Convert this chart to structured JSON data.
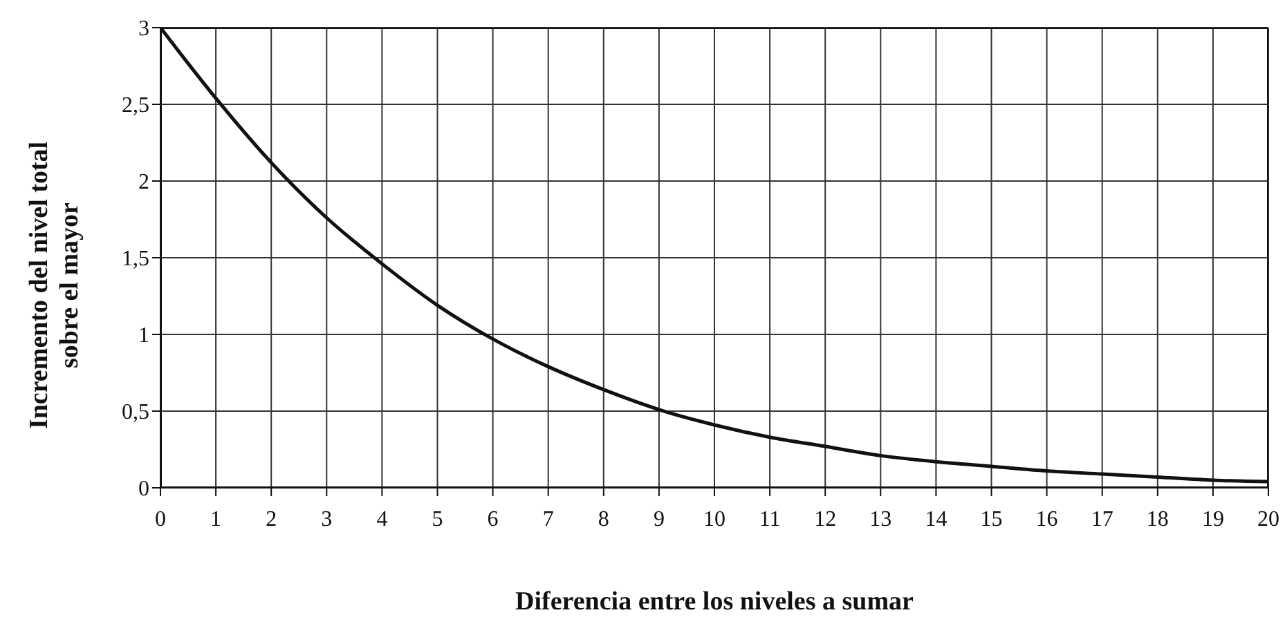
{
  "chart_data": {
    "type": "line",
    "xlabel": "Diferencia entre los niveles a sumar",
    "ylabel": "Incremento del nivel total sobre el mayor",
    "x": [
      0,
      1,
      2,
      3,
      4,
      5,
      6,
      7,
      8,
      9,
      10,
      11,
      12,
      13,
      14,
      15,
      16,
      17,
      18,
      19,
      20
    ],
    "series": [
      {
        "color": "#111111",
        "values": [
          3,
          2.54,
          2.12,
          1.76,
          1.46,
          1.19,
          0.97,
          0.79,
          0.64,
          0.51,
          0.41,
          0.33,
          0.27,
          0.21,
          0.17,
          0.14,
          0.11,
          0.09,
          0.07,
          0.05,
          0.04
        ]
      }
    ],
    "xlim": [
      0,
      20
    ],
    "xticks": [
      0,
      1,
      2,
      3,
      4,
      5,
      6,
      7,
      8,
      9,
      10,
      11,
      12,
      13,
      14,
      15,
      16,
      17,
      18,
      19,
      20
    ],
    "ylim": [
      0,
      3
    ],
    "yticks": [
      0,
      {
        "value": 0.5,
        "label": "0,5"
      },
      1,
      {
        "value": 1.5,
        "label": "1,5"
      },
      2,
      {
        "value": 2.5,
        "label": "2,5"
      },
      3
    ],
    "grid": true,
    "marker": "none",
    "line_style": "solid"
  }
}
